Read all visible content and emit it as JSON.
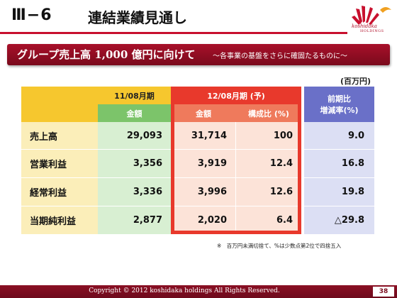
{
  "header": {
    "section_number": "Ⅲ−6",
    "title": "連結業績見通し"
  },
  "logo": {
    "text": "koshidaka",
    "sub": "HOLDINGS"
  },
  "banner": {
    "main": "グループ売上高 1,000 億円に向けて",
    "sub": "〜各事業の基盤をさらに確固たるものに〜"
  },
  "unit": "(百万円)",
  "table": {
    "header": {
      "fy11_period": "11/08月期",
      "fy11_amount": "金額",
      "fy12_period": "12/08月期 (予)",
      "fy12_amount": "金額",
      "fy12_ratio": "構成比 (%)",
      "change_line1": "前期比",
      "change_line2": "増減率(%)"
    },
    "rows": [
      {
        "label": "売上高",
        "fy11": "29,093",
        "fy12": "31,714",
        "ratio": "100",
        "change": "9.0"
      },
      {
        "label": "営業利益",
        "fy11": "3,356",
        "fy12": "3,919",
        "ratio": "12.4",
        "change": "16.8"
      },
      {
        "label": "経常利益",
        "fy11": "3,336",
        "fy12": "3,996",
        "ratio": "12.6",
        "change": "19.8"
      },
      {
        "label": "当期純利益",
        "fy11": "2,877",
        "fy12": "2,020",
        "ratio": "6.4",
        "change": "△29.8"
      }
    ]
  },
  "note": "※　百万円未満切捨て、%は少数点第2位で四捨五入",
  "footer": {
    "copyright": "Copyright © 2012 koshidaka holdings All Rights Reserved.",
    "page": "38"
  },
  "colors": {
    "accent_red": "#c8102e",
    "banner": "#a8102a",
    "label_bg": "#fbeeb9",
    "fy11_bg": "#d8efd2",
    "fy12_bg": "#fce3d8",
    "change_bg": "#dcdff4",
    "frame": "#e8392c"
  }
}
